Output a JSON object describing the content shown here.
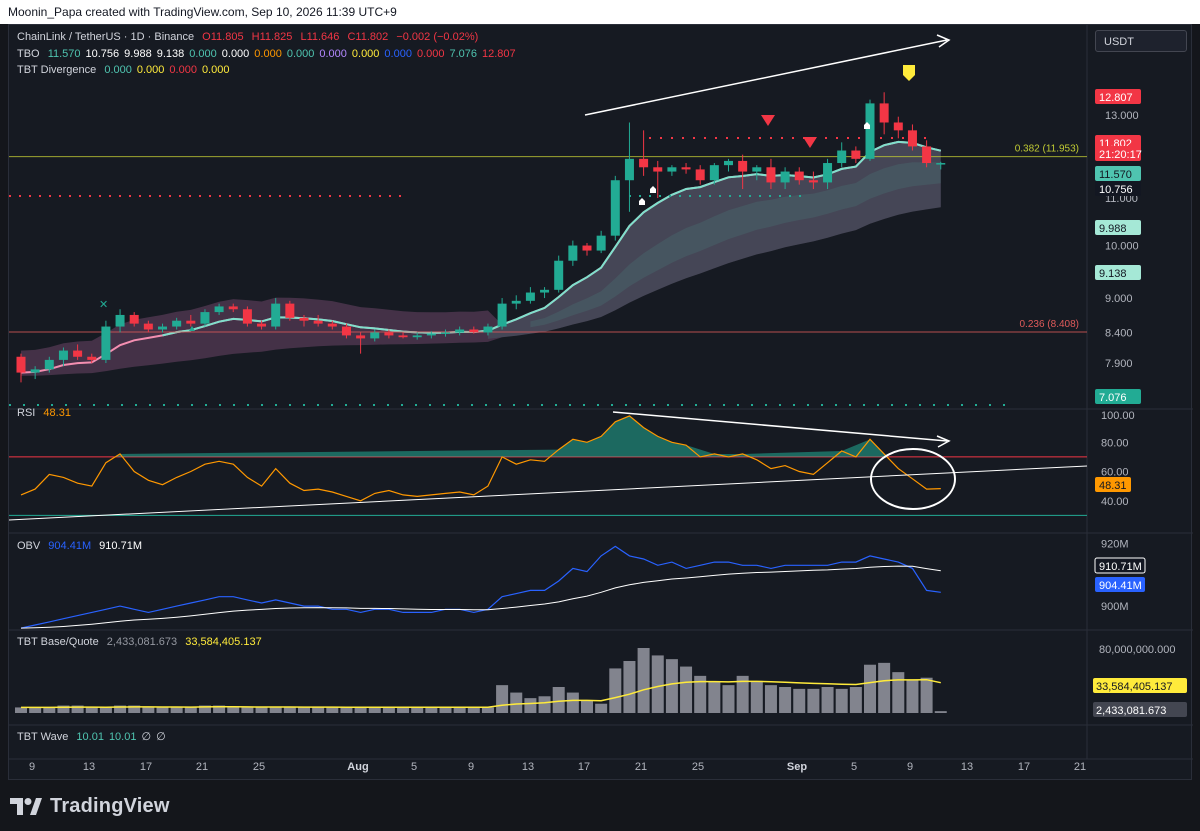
{
  "header": {
    "caption": "Moonin_Papa created with TradingView.com, Sep 10, 2026 11:39 UTC+9"
  },
  "symbol_box": "USDT",
  "legend": {
    "main_title": "ChainLink / TetherUS · 1D · Binance",
    "ohlc": {
      "o": "O11.805",
      "h": "H11.825",
      "l": "L11.646",
      "c": "C11.802",
      "chg": "−0.002 (−0.02%)"
    },
    "tbo": {
      "label": "TBO",
      "values": [
        "11.570",
        "10.756",
        "9.988",
        "9.138",
        "0.000",
        "0.000",
        "0.000",
        "0.000",
        "0.000",
        "0.000",
        "0.000",
        "0.000",
        "7.076",
        "12.807"
      ],
      "colors": [
        "#4fc4b0",
        "#ffffff",
        "#ffffff",
        "#ffffff",
        "#4fc4b0",
        "#ffffff",
        "#ff9800",
        "#4fc4b0",
        "#b388ff",
        "#ffeb3b",
        "#2962ff",
        "#f23645",
        "#4fc4b0",
        "#f23645"
      ]
    },
    "tbt_div": {
      "label": "TBT Divergence",
      "values": [
        "0.000",
        "0.000",
        "0.000",
        "0.000"
      ],
      "colors": [
        "#4fc4b0",
        "#ffeb3b",
        "#f23645",
        "#ffeb3b"
      ]
    },
    "rsi": {
      "label": "RSI",
      "value": "48.31"
    },
    "obv": {
      "label": "OBV",
      "v1": "904.41M",
      "v2": "910.71M"
    },
    "basequote": {
      "label": "TBT Base/Quote",
      "v1": "2,433,081.673",
      "v2": "33,584,405.137"
    },
    "wave": {
      "label": "TBT Wave",
      "values": [
        "10.01",
        "10.01",
        "∅",
        "∅"
      ]
    }
  },
  "price_axis": {
    "ticks": [
      "13.000",
      "12.000",
      "11.000",
      "10.000",
      "9.000",
      "8.400",
      "7.900",
      "7.400"
    ],
    "badges": [
      {
        "text": "12.807",
        "bg": "#f23645",
        "fg": "#ffffff"
      },
      {
        "text": "11.802",
        "bg": "#f23645",
        "fg": "#ffffff"
      },
      {
        "text": "21:20:17",
        "bg": "#f23645",
        "fg": "#ffffff"
      },
      {
        "text": "11.570",
        "bg": "#4fc4b0",
        "fg": "#131722"
      },
      {
        "text": "10.756",
        "bg": "#131722",
        "fg": "#ffffff"
      },
      {
        "text": "9.988",
        "bg": "#a5e8d6",
        "fg": "#131722"
      },
      {
        "text": "9.138",
        "bg": "#a5e8d6",
        "fg": "#131722"
      },
      {
        "text": "7.076",
        "bg": "#22ab94",
        "fg": "#ffffff"
      }
    ],
    "fib": [
      {
        "label": "0.382 (11.953)",
        "value": 11.953,
        "color": "#c0ca33"
      },
      {
        "label": "0.236 (8.408)",
        "value": 8.408,
        "color": "#e05a5a"
      }
    ]
  },
  "rsi_axis": {
    "ticks": [
      "100.00",
      "80.00",
      "60.00",
      "40.00"
    ],
    "badge": "48.31"
  },
  "obv_axis": {
    "ticks": [
      "920M",
      "900M"
    ],
    "badges": [
      "910.71M",
      "904.41M"
    ]
  },
  "bq_axis": {
    "ticks": [
      "80,000,000.000"
    ],
    "badges": [
      "33,584,405.137",
      "2,433,081.673"
    ]
  },
  "time_axis": [
    "9",
    "13",
    "17",
    "21",
    "25",
    "Aug",
    "5",
    "9",
    "13",
    "17",
    "21",
    "25",
    "Sep",
    "5",
    "9",
    "13",
    "17",
    "21"
  ],
  "brand": "TradingView",
  "colors": {
    "up": "#22ab94",
    "down": "#f23645",
    "rsi": "#ff9800",
    "obv": "#2962ff",
    "sma": "#ffeb3b"
  },
  "chart_data": {
    "type": "candlestick",
    "title": "ChainLink / TetherUS · 1D · Binance",
    "start_date": "2026-07-06",
    "candles": [
      [
        8.0,
        8.05,
        7.6,
        7.75
      ],
      [
        7.75,
        7.85,
        7.65,
        7.8
      ],
      [
        7.8,
        8.0,
        7.75,
        7.95
      ],
      [
        7.95,
        8.15,
        7.85,
        8.1
      ],
      [
        8.1,
        8.2,
        7.95,
        8.0
      ],
      [
        8.0,
        8.05,
        7.9,
        7.95
      ],
      [
        7.95,
        8.6,
        7.9,
        8.5
      ],
      [
        8.5,
        8.8,
        8.4,
        8.7
      ],
      [
        8.7,
        8.75,
        8.5,
        8.55
      ],
      [
        8.55,
        8.6,
        8.4,
        8.45
      ],
      [
        8.45,
        8.55,
        8.4,
        8.5
      ],
      [
        8.5,
        8.65,
        8.45,
        8.6
      ],
      [
        8.6,
        8.7,
        8.5,
        8.55
      ],
      [
        8.55,
        8.8,
        8.5,
        8.75
      ],
      [
        8.75,
        8.9,
        8.7,
        8.85
      ],
      [
        8.85,
        8.9,
        8.75,
        8.8
      ],
      [
        8.8,
        8.85,
        8.5,
        8.55
      ],
      [
        8.55,
        8.6,
        8.45,
        8.5
      ],
      [
        8.5,
        9.0,
        8.45,
        8.9
      ],
      [
        8.9,
        8.95,
        8.6,
        8.65
      ],
      [
        8.65,
        8.7,
        8.5,
        8.6
      ],
      [
        8.6,
        8.7,
        8.5,
        8.55
      ],
      [
        8.55,
        8.6,
        8.45,
        8.5
      ],
      [
        8.5,
        8.55,
        8.3,
        8.35
      ],
      [
        8.35,
        8.4,
        8.05,
        8.3
      ],
      [
        8.3,
        8.45,
        8.25,
        8.4
      ],
      [
        8.4,
        8.45,
        8.3,
        8.35
      ],
      [
        8.35,
        8.4,
        8.3,
        8.32
      ],
      [
        8.32,
        8.4,
        8.28,
        8.35
      ],
      [
        8.35,
        8.42,
        8.3,
        8.38
      ],
      [
        8.38,
        8.45,
        8.33,
        8.4
      ],
      [
        8.4,
        8.5,
        8.35,
        8.45
      ],
      [
        8.45,
        8.5,
        8.38,
        8.4
      ],
      [
        8.4,
        8.55,
        8.35,
        8.5
      ],
      [
        8.5,
        9.0,
        8.45,
        8.9
      ],
      [
        8.9,
        9.05,
        8.8,
        8.95
      ],
      [
        8.95,
        9.2,
        8.9,
        9.1
      ],
      [
        9.1,
        9.2,
        9.0,
        9.15
      ],
      [
        9.15,
        9.8,
        9.1,
        9.7
      ],
      [
        9.7,
        10.1,
        9.6,
        10.0
      ],
      [
        10.0,
        10.05,
        9.8,
        9.9
      ],
      [
        9.9,
        10.3,
        9.85,
        10.2
      ],
      [
        10.2,
        11.5,
        10.1,
        11.4
      ],
      [
        11.4,
        12.8,
        10.7,
        11.9
      ],
      [
        11.9,
        12.6,
        11.5,
        11.7
      ],
      [
        11.7,
        11.85,
        11.0,
        11.6
      ],
      [
        11.6,
        11.75,
        11.5,
        11.7
      ],
      [
        11.7,
        11.8,
        11.55,
        11.65
      ],
      [
        11.65,
        11.75,
        11.3,
        11.4
      ],
      [
        11.4,
        11.8,
        11.3,
        11.75
      ],
      [
        11.75,
        11.9,
        11.6,
        11.85
      ],
      [
        11.85,
        12.0,
        11.2,
        11.6
      ],
      [
        11.6,
        11.75,
        11.4,
        11.7
      ],
      [
        11.7,
        11.9,
        11.2,
        11.35
      ],
      [
        11.35,
        11.7,
        11.2,
        11.6
      ],
      [
        11.6,
        11.7,
        11.3,
        11.4
      ],
      [
        11.4,
        11.6,
        11.2,
        11.35
      ],
      [
        11.35,
        11.9,
        11.2,
        11.8
      ],
      [
        11.8,
        12.3,
        11.7,
        12.1
      ],
      [
        12.1,
        12.2,
        11.8,
        11.9
      ],
      [
        11.9,
        13.4,
        11.85,
        13.3
      ],
      [
        13.3,
        13.6,
        12.5,
        12.8
      ],
      [
        12.8,
        12.95,
        12.4,
        12.6
      ],
      [
        12.6,
        12.75,
        12.1,
        12.2
      ],
      [
        12.2,
        12.35,
        11.7,
        11.8
      ],
      [
        11.8,
        11.83,
        11.65,
        11.8
      ]
    ],
    "rsi": [
      44,
      48,
      58,
      56,
      52,
      50,
      66,
      72,
      60,
      54,
      51,
      56,
      60,
      65,
      67,
      65,
      56,
      50,
      62,
      52,
      47,
      48,
      46,
      43,
      40,
      45,
      47,
      44,
      43,
      44,
      45,
      46,
      44,
      50,
      70,
      65,
      68,
      67,
      75,
      82,
      80,
      84,
      94,
      98,
      90,
      84,
      80,
      78,
      70,
      72,
      70,
      72,
      68,
      62,
      64,
      60,
      58,
      66,
      74,
      70,
      82,
      72,
      62,
      55,
      48,
      48.31
    ],
    "rsi_ylim": [
      20,
      100
    ],
    "obv": [
      893,
      894,
      895,
      896,
      897,
      898,
      899,
      900,
      899,
      898,
      899,
      900,
      901,
      902,
      903,
      903,
      902,
      901,
      902,
      901,
      900,
      900,
      899,
      899,
      898,
      899,
      899,
      898,
      898,
      898,
      899,
      899,
      898,
      899,
      903,
      904,
      905,
      905,
      908,
      912,
      911,
      916,
      919,
      916,
      915,
      913,
      914,
      912,
      913,
      914,
      914,
      913,
      913,
      912,
      913,
      913,
      913,
      913,
      914,
      914,
      916,
      915,
      914,
      912,
      905,
      904.41
    ],
    "obv_ylim": [
      894,
      922
    ],
    "volume": [
      3,
      3,
      3,
      4,
      4,
      3,
      3,
      4,
      4,
      3,
      3,
      3,
      3,
      4,
      4,
      3,
      3,
      3,
      3,
      3,
      3,
      3,
      3,
      3,
      3,
      3,
      3,
      3,
      3,
      3,
      3,
      3,
      3,
      3,
      15,
      11,
      8,
      9,
      14,
      11,
      7,
      5,
      24,
      28,
      35,
      31,
      29,
      25,
      20,
      17,
      15,
      20,
      17,
      15,
      14,
      13,
      13,
      14,
      13,
      14,
      26,
      27,
      22,
      18,
      19,
      1
    ],
    "volume_ylim": [
      0,
      42
    ]
  }
}
